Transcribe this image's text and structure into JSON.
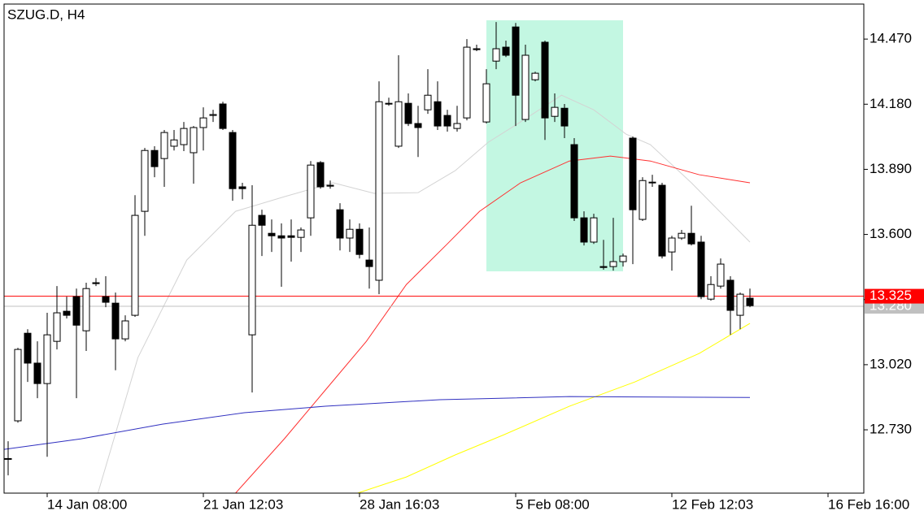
{
  "chart_data": {
    "type": "candlestick",
    "title": "SZUG.D, H4",
    "categories": [
      null,
      null,
      null,
      null,
      "14 Jan 08:00",
      null,
      null,
      null,
      null,
      null,
      null,
      null,
      null,
      null,
      null,
      null,
      null,
      null,
      null,
      null,
      "21 Jan 12:03",
      null,
      null,
      null,
      null,
      null,
      null,
      null,
      null,
      null,
      null,
      null,
      null,
      null,
      null,
      null,
      "28 Jan 16:03",
      null,
      null,
      null,
      null,
      null,
      null,
      null,
      null,
      null,
      null,
      null,
      null,
      null,
      null,
      null,
      "5 Feb 08:00",
      null,
      null,
      null,
      null,
      null,
      null,
      null,
      null,
      null,
      null,
      null,
      null,
      null,
      null,
      null,
      "12 Feb 12:03",
      null,
      null,
      null,
      null,
      null,
      null,
      null,
      null,
      null,
      null,
      null,
      null,
      null,
      null,
      null,
      "16 Feb 16:00"
    ],
    "open": [
      12.6,
      12.77,
      13.16,
      13.027,
      12.936,
      13.124,
      13.258,
      13.323,
      13.171,
      13.385,
      13.323,
      13.294,
      13.135,
      13.24,
      13.703,
      13.974,
      13.938,
      13.993,
      14.0,
      13.964,
      14.076,
      14.13,
      14.181,
      14.054,
      13.812,
      13.153,
      13.685,
      13.605,
      13.594,
      13.594,
      13.587,
      13.674,
      13.92,
      13.819,
      13.71,
      13.584,
      13.623,
      13.486,
      13.396,
      14.184,
      13.993,
      14.184,
      14.094,
      14.155,
      14.191,
      14.13,
      14.072,
      14.119,
      14.427,
      14.101,
      14.372,
      14.434,
      14.524,
      14.112,
      14.289,
      14.456,
      14.126,
      14.162,
      14.0,
      13.674,
      13.566,
      13.457,
      13.457,
      13.479,
      14.029,
      13.667,
      13.833,
      13.819,
      13.522,
      13.584,
      13.605,
      13.566,
      13.312,
      13.37,
      13.396,
      13.24,
      13.316,
      null,
      null,
      null,
      null,
      null,
      null,
      null,
      null
    ],
    "high": [
      12.679,
      13.095,
      13.178,
      13.124,
      13.251,
      13.37,
      13.323,
      13.359,
      13.385,
      13.406,
      13.414,
      13.341,
      13.24,
      13.775,
      13.985,
      13.993,
      14.065,
      14.065,
      14.101,
      14.083,
      14.166,
      14.155,
      14.191,
      14.065,
      13.83,
      13.819,
      13.71,
      13.667,
      13.649,
      13.667,
      13.631,
      13.927,
      13.927,
      13.84,
      13.739,
      13.667,
      13.649,
      13.631,
      14.282,
      14.209,
      14.398,
      14.228,
      14.173,
      14.336,
      14.282,
      14.155,
      14.173,
      14.47,
      14.445,
      14.336,
      14.546,
      14.463,
      14.542,
      14.445,
      14.325,
      14.463,
      14.228,
      14.181,
      14.029,
      13.703,
      13.692,
      13.576,
      13.674,
      13.515,
      14.036,
      13.855,
      13.866,
      13.83,
      13.594,
      13.62,
      13.728,
      13.594,
      13.414,
      13.493,
      13.414,
      13.341,
      13.359,
      null,
      null,
      null,
      null,
      null,
      null,
      null,
      null
    ],
    "low": [
      12.527,
      12.762,
      12.943,
      12.871,
      12.61,
      13.088,
      13.226,
      12.871,
      13.081,
      13.37,
      13.276,
      12.995,
      13.124,
      13.233,
      13.594,
      13.855,
      13.812,
      13.974,
      13.971,
      13.826,
      13.974,
      14.101,
      14.065,
      13.75,
      13.757,
      12.896,
      13.504,
      13.522,
      13.367,
      13.479,
      13.522,
      13.594,
      13.804,
      13.804,
      13.529,
      13.522,
      13.493,
      13.359,
      13.334,
      14.173,
      13.985,
      14.083,
      13.945,
      14.137,
      14.065,
      14.058,
      14.058,
      14.108,
      14.416,
      14.094,
      14.336,
      14.39,
      14.083,
      14.101,
      14.282,
      14.021,
      14.101,
      14.029,
      13.66,
      13.551,
      13.558,
      13.443,
      13.439,
      13.457,
      13.468,
      13.66,
      13.812,
      13.493,
      13.439,
      13.576,
      13.551,
      13.312,
      13.305,
      13.359,
      13.153,
      13.178,
      13.276,
      null,
      null,
      null,
      null,
      null,
      null,
      null,
      null
    ],
    "close": [
      12.602,
      13.088,
      13.027,
      12.936,
      13.153,
      13.251,
      13.24,
      13.196,
      13.359,
      13.381,
      13.298,
      13.135,
      13.215,
      13.685,
      13.974,
      13.902,
      14.054,
      14.021,
      14.072,
      14.076,
      14.119,
      14.134,
      14.072,
      13.804,
      13.804,
      13.641,
      13.641,
      13.594,
      13.584,
      13.587,
      13.62,
      13.909,
      13.812,
      13.815,
      13.584,
      13.623,
      13.511,
      13.457,
      14.191,
      14.181,
      14.191,
      14.094,
      14.076,
      14.22,
      14.083,
      14.083,
      14.094,
      14.434,
      14.423,
      14.271,
      14.427,
      14.398,
      14.22,
      14.398,
      14.318,
      14.119,
      14.166,
      14.083,
      13.674,
      13.566,
      13.674,
      13.453,
      13.479,
      13.504,
      13.71,
      13.84,
      13.83,
      13.504,
      13.584,
      13.605,
      13.558,
      13.323,
      13.377,
      13.468,
      13.262,
      13.334,
      13.283,
      null,
      null,
      null,
      null,
      null,
      null,
      null,
      null
    ],
    "up_color": "#ffffff",
    "down_color": "#000000",
    "ylim": [
      12.448,
      14.626
    ],
    "yticks": [
      {
        "value": 12.73,
        "label": "12.730"
      },
      {
        "value": 13.02,
        "label": "13.020"
      },
      {
        "value": 13.31,
        "label": "13.310"
      },
      {
        "value": 13.6,
        "label": "13.600"
      },
      {
        "value": 13.89,
        "label": "13.890"
      },
      {
        "value": 14.18,
        "label": "14.180"
      },
      {
        "value": 14.47,
        "label": "14.470"
      }
    ],
    "moving_averages": [
      {
        "color": "#d3d3d3",
        "x": [
          9.2,
          13.3,
          18.3,
          23.3,
          28.3,
          33.3,
          37.5,
          42,
          45.8,
          49.2,
          52.5,
          56.7,
          60,
          63.3,
          65.8,
          70,
          76
        ],
        "values": [
          12.448,
          13.052,
          13.486,
          13.703,
          13.768,
          13.83,
          13.783,
          13.786,
          13.884,
          14.011,
          14.101,
          14.22,
          14.155,
          14.047,
          14.0,
          13.83,
          13.566
        ]
      },
      {
        "color": "#ff3030",
        "x": [
          23.3,
          28.3,
          32.5,
          36.7,
          40.8,
          45,
          48.3,
          52.5,
          57.5,
          61.7,
          65.8,
          70.8,
          76
        ],
        "values": [
          12.448,
          12.69,
          12.907,
          13.124,
          13.377,
          13.558,
          13.703,
          13.83,
          13.927,
          13.949,
          13.927,
          13.866,
          13.83
        ]
      },
      {
        "color": "#ffff00",
        "x": [
          35.8,
          40.8,
          45.8,
          50.8,
          57.5,
          64.2,
          70.8,
          76
        ],
        "values": [
          12.448,
          12.52,
          12.618,
          12.708,
          12.835,
          12.943,
          13.07,
          13.204
        ]
      },
      {
        "color": "#3030c0",
        "x": [
          -0.4,
          7.5,
          15.8,
          24.2,
          32.5,
          44.2,
          57.5,
          76
        ],
        "values": [
          12.643,
          12.69,
          12.755,
          12.806,
          12.835,
          12.864,
          12.878,
          12.874
        ]
      }
    ],
    "price_lines": [
      {
        "value": 13.28,
        "label": "13.280",
        "color": "#c0c0c0"
      },
      {
        "value": 13.325,
        "label": "13.325",
        "color": "#ff0000"
      }
    ]
  }
}
